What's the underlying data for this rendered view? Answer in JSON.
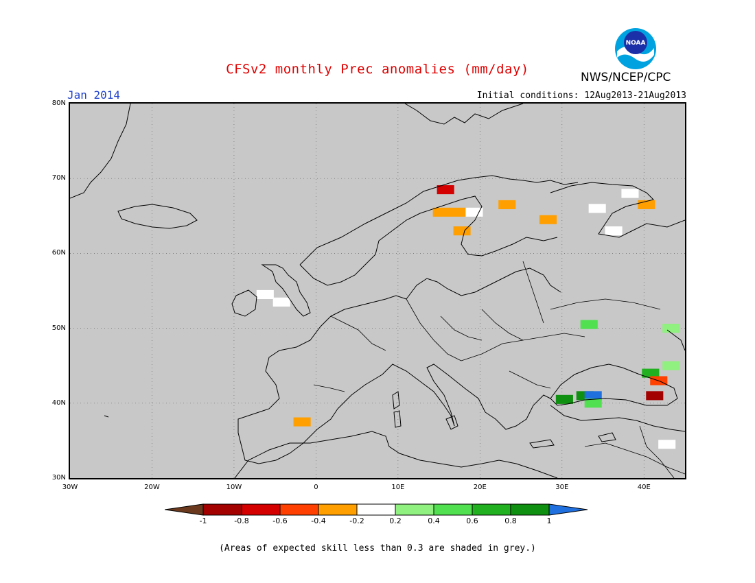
{
  "header": {
    "title": "CFSv2 monthly Prec anomalies (mm/day)",
    "month": "Jan 2014",
    "initial_conditions": "Initial conditions: 12Aug2013-21Aug2013",
    "agency": "NWS/NCEP/CPC",
    "logo_text": "NOAA"
  },
  "map": {
    "lat_labels": [
      "80N",
      "70N",
      "60N",
      "50N",
      "40N",
      "30N"
    ],
    "lon_labels": [
      "30W",
      "20W",
      "10W",
      "0",
      "10E",
      "20E",
      "30E",
      "40E"
    ],
    "background_color": "#c8c8c8",
    "extent": {
      "lon_min": -30,
      "lon_max": 45,
      "lat_min": 30,
      "lat_max": 80
    },
    "anomaly_cells": [
      {
        "lon": -2,
        "lat": 37.5,
        "value": -0.3
      },
      {
        "lon": 15.5,
        "lat": 68.5,
        "value": -0.7
      },
      {
        "lon": 15,
        "lat": 65.5,
        "value": -0.3
      },
      {
        "lon": 17,
        "lat": 65.5,
        "value": -0.3
      },
      {
        "lon": 19,
        "lat": 65.5,
        "value": -0.1
      },
      {
        "lon": 23,
        "lat": 66.5,
        "value": -0.3
      },
      {
        "lon": 17.5,
        "lat": 63,
        "value": -0.3
      },
      {
        "lon": 28,
        "lat": 64.5,
        "value": -0.3
      },
      {
        "lon": 34,
        "lat": 66,
        "value": -0.1
      },
      {
        "lon": 38,
        "lat": 68,
        "value": -0.1
      },
      {
        "lon": 40,
        "lat": 66.5,
        "value": -0.3
      },
      {
        "lon": 36,
        "lat": 63,
        "value": -0.1
      },
      {
        "lon": -6.5,
        "lat": 54.5,
        "value": -0.1
      },
      {
        "lon": -4.5,
        "lat": 53.5,
        "value": -0.1
      },
      {
        "lon": 33,
        "lat": 50.5,
        "value": 0.5
      },
      {
        "lon": 43,
        "lat": 50,
        "value": 0.3
      },
      {
        "lon": 43,
        "lat": 45,
        "value": 0.3
      },
      {
        "lon": 40.5,
        "lat": 44,
        "value": 0.7
      },
      {
        "lon": 41.5,
        "lat": 43,
        "value": -0.5
      },
      {
        "lon": 41,
        "lat": 41,
        "value": -0.9
      },
      {
        "lon": 30,
        "lat": 40.5,
        "value": 0.9
      },
      {
        "lon": 32.5,
        "lat": 41,
        "value": 0.9
      },
      {
        "lon": 33.5,
        "lat": 41,
        "value": 1.1
      },
      {
        "lon": 33.5,
        "lat": 40,
        "value": 0.5
      },
      {
        "lon": 42.5,
        "lat": 34.5,
        "value": -0.1
      }
    ]
  },
  "colorbar": {
    "labels": [
      "-1",
      "-0.8",
      "-0.6",
      "-0.4",
      "-0.2",
      "0.2",
      "0.4",
      "0.6",
      "0.8",
      "1"
    ],
    "colors": [
      "#6b3a1e",
      "#a30000",
      "#d40000",
      "#ff4000",
      "#ff9f00",
      "#ffffff",
      "#90f080",
      "#50e050",
      "#20b020",
      "#109010",
      "#2070e0"
    ]
  },
  "footer": {
    "note": "(Areas of expected skill less than 0.3 are shaded in grey.)"
  }
}
